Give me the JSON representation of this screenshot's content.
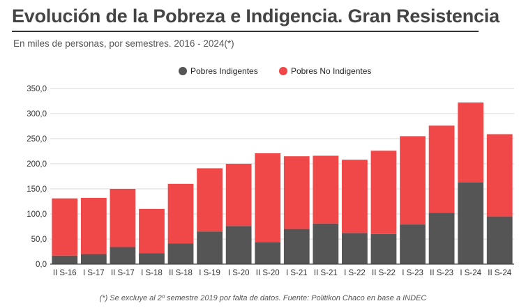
{
  "header": {
    "title": "Evolución de la Pobreza e Indigencia. Gran Resistencia",
    "subtitle": "En miles de personas, por semestres. 2016 - 2024(*)"
  },
  "footnote": "(*) Se excluye al 2º semestre 2019 por falta de datos. Fuente: Politikon Chaco en base a INDEC",
  "colors": {
    "indigentes": "#555555",
    "no_indigentes": "#f04848",
    "grid": "#d9d9d9",
    "axis": "#444444"
  },
  "chart_data": {
    "type": "bar",
    "stacked": true,
    "categories": [
      "II S-16",
      "I S-17",
      "II S-17",
      "I S-18",
      "II S-18",
      "I S-19",
      "I S-20",
      "II S-20",
      "I S-21",
      "II S-21",
      "I S-22",
      "II S-22",
      "I S-23",
      "II S-23",
      "I S-24",
      "II S-24"
    ],
    "series": [
      {
        "name": "Pobres Indigentes",
        "values": [
          17,
          20,
          34,
          22,
          41,
          65,
          76,
          44,
          70,
          81,
          62,
          60,
          79,
          102,
          163,
          95
        ]
      },
      {
        "name": "Pobres No Indigentes",
        "values": [
          114,
          112,
          116,
          88,
          119,
          126,
          124,
          177,
          145,
          135,
          146,
          166,
          176,
          174,
          159,
          164
        ]
      }
    ],
    "yticks": [
      "0,0",
      "50,0",
      "100,0",
      "150,0",
      "200,0",
      "250,0",
      "300,0",
      "350,0"
    ],
    "ylim": [
      0,
      350
    ],
    "grid": true,
    "legend_position": "top-center"
  }
}
